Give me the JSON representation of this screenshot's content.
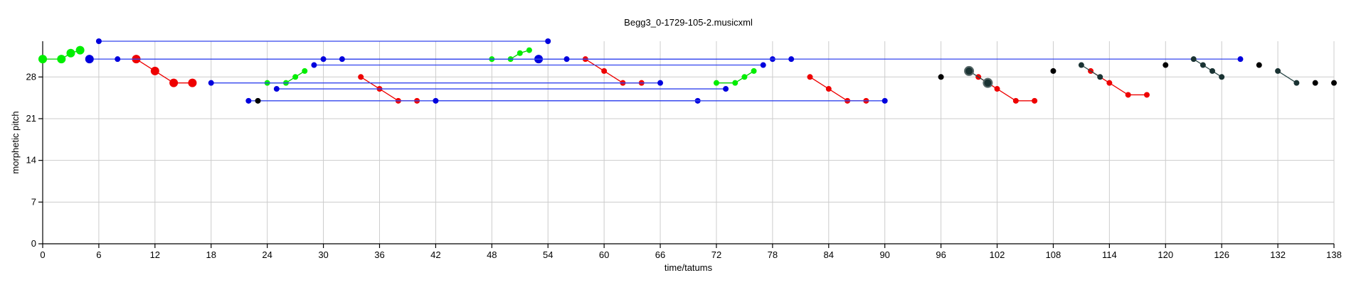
{
  "chart_data": {
    "type": "scatter",
    "title": "Begg3_0-1729-105-2.musicxml",
    "xlabel": "time/tatums",
    "ylabel": "morphetic pitch",
    "xlim": [
      0,
      138
    ],
    "ylim": [
      0,
      34
    ],
    "xticks": [
      0,
      6,
      12,
      18,
      24,
      30,
      36,
      42,
      48,
      54,
      60,
      66,
      72,
      78,
      84,
      90,
      96,
      102,
      108,
      114,
      120,
      126,
      132,
      138
    ],
    "yticks": [
      0,
      7,
      14,
      21,
      28
    ],
    "grid": true,
    "colors": {
      "green": "#00ee00",
      "blue": "#0000dd",
      "red": "#ee0000",
      "dark": "#1a3333",
      "black": "#000000",
      "link_blue": "#3344ee"
    },
    "series": [
      {
        "color": "green",
        "size": "large",
        "points": [
          [
            0,
            31
          ],
          [
            2,
            31
          ],
          [
            3,
            32
          ],
          [
            4,
            32.5
          ]
        ]
      },
      {
        "color": "green",
        "size": "small",
        "points": [
          [
            24,
            27
          ],
          [
            26,
            27
          ],
          [
            27,
            28
          ],
          [
            28,
            29
          ]
        ]
      },
      {
        "color": "green",
        "size": "small",
        "points": [
          [
            48,
            31
          ],
          [
            50,
            31
          ],
          [
            51,
            32
          ],
          [
            52,
            32.5
          ]
        ]
      },
      {
        "color": "green",
        "size": "small",
        "points": [
          [
            72,
            27
          ],
          [
            74,
            27
          ],
          [
            75,
            28
          ],
          [
            76,
            29
          ]
        ]
      },
      {
        "color": "red",
        "size": "large",
        "points": [
          [
            10,
            31
          ],
          [
            12,
            29
          ],
          [
            14,
            27
          ],
          [
            16,
            27
          ]
        ]
      },
      {
        "color": "red",
        "size": "small",
        "points": [
          [
            34,
            28
          ],
          [
            36,
            26
          ],
          [
            38,
            24
          ],
          [
            40,
            24
          ]
        ]
      },
      {
        "color": "red",
        "size": "small",
        "points": [
          [
            58,
            31
          ],
          [
            60,
            29
          ],
          [
            62,
            27
          ],
          [
            64,
            27
          ]
        ]
      },
      {
        "color": "red",
        "size": "small",
        "points": [
          [
            82,
            28
          ],
          [
            84,
            26
          ],
          [
            86,
            24
          ],
          [
            88,
            24
          ]
        ]
      },
      {
        "color": "red",
        "size": "small",
        "points": [
          [
            100,
            28
          ],
          [
            102,
            26
          ],
          [
            104,
            24
          ],
          [
            106,
            24
          ]
        ]
      },
      {
        "color": "red",
        "size": "small",
        "points": [
          [
            112,
            29
          ],
          [
            114,
            27
          ],
          [
            116,
            25
          ],
          [
            118,
            25
          ]
        ]
      },
      {
        "color": "blue",
        "size": "small",
        "points": [
          [
            6,
            34
          ],
          [
            54,
            34
          ]
        ]
      },
      {
        "color": "blue",
        "size": "large",
        "points": [
          [
            5,
            31
          ],
          [
            53,
            31
          ]
        ]
      },
      {
        "color": "blue",
        "size": "small",
        "points": [
          [
            8,
            31
          ],
          [
            128,
            31
          ]
        ]
      },
      {
        "color": "blue",
        "size": "small",
        "points": [
          [
            29,
            30
          ],
          [
            77,
            30
          ]
        ]
      },
      {
        "color": "blue",
        "size": "small",
        "points": [
          [
            30,
            31
          ],
          [
            78,
            31
          ]
        ]
      },
      {
        "color": "blue",
        "size": "small",
        "points": [
          [
            32,
            31
          ],
          [
            80,
            31
          ]
        ]
      },
      {
        "color": "blue",
        "size": "small",
        "points": [
          [
            18,
            27
          ],
          [
            66,
            27
          ]
        ]
      },
      {
        "color": "blue",
        "size": "small",
        "points": [
          [
            25,
            26
          ],
          [
            73,
            26
          ]
        ]
      },
      {
        "color": "blue",
        "size": "small",
        "points": [
          [
            22,
            24
          ],
          [
            70,
            24
          ]
        ]
      },
      {
        "color": "blue",
        "size": "small",
        "points": [
          [
            42,
            24
          ],
          [
            90,
            24
          ]
        ]
      },
      {
        "color": "blue",
        "size": "small",
        "points": [
          [
            56,
            31
          ]
        ]
      },
      {
        "color": "black",
        "size": "small",
        "points": [
          [
            23,
            24
          ]
        ]
      },
      {
        "color": "black",
        "size": "small",
        "points": [
          [
            96,
            28
          ]
        ]
      },
      {
        "color": "black",
        "size": "small",
        "points": [
          [
            108,
            29
          ]
        ]
      },
      {
        "color": "black",
        "size": "small",
        "points": [
          [
            120,
            30
          ]
        ]
      },
      {
        "color": "black",
        "size": "small",
        "points": [
          [
            130,
            30
          ]
        ]
      },
      {
        "color": "black",
        "size": "small",
        "points": [
          [
            136,
            27
          ]
        ]
      },
      {
        "color": "black",
        "size": "small",
        "points": [
          [
            138,
            27
          ]
        ]
      },
      {
        "color": "dark",
        "size": "large",
        "points": [
          [
            99,
            29
          ],
          [
            101,
            27
          ]
        ]
      },
      {
        "color": "dark",
        "size": "small",
        "points": [
          [
            111,
            30
          ],
          [
            113,
            28
          ]
        ]
      },
      {
        "color": "dark",
        "size": "small",
        "points": [
          [
            123,
            31
          ],
          [
            124,
            30
          ],
          [
            125,
            29
          ],
          [
            126,
            28
          ]
        ]
      },
      {
        "color": "dark",
        "size": "small",
        "points": [
          [
            132,
            29
          ],
          [
            134,
            27
          ]
        ]
      }
    ]
  }
}
